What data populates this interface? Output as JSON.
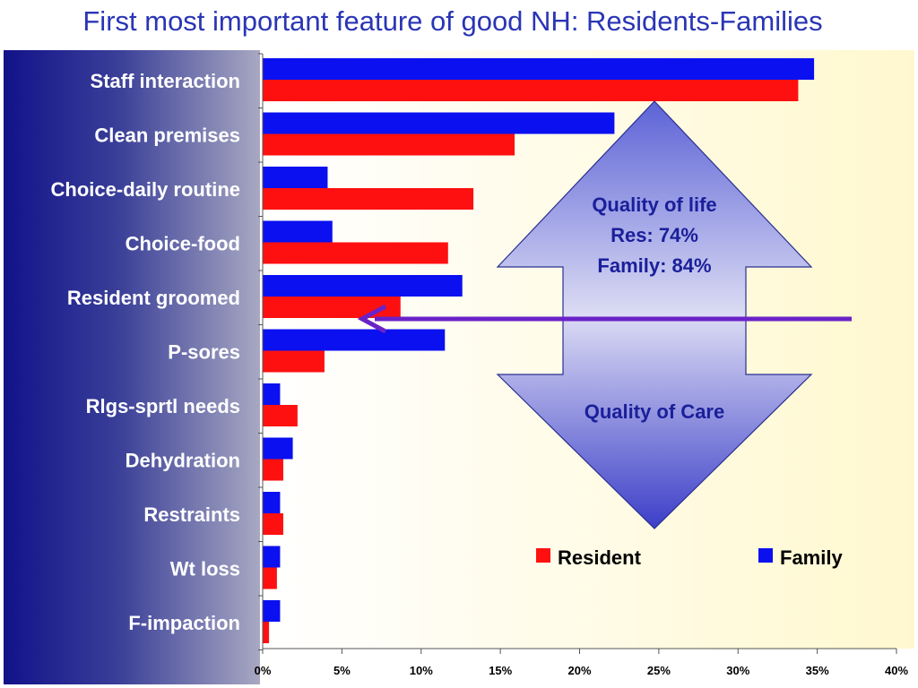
{
  "title": "First most important feature of good NH: Residents-Families",
  "colors": {
    "resident": "#ff1010",
    "family": "#0a10f0",
    "title": "#2a35b5",
    "arrow": "#6a22c8",
    "callout_text": "#1a1f9a"
  },
  "chart_data": {
    "type": "bar",
    "orientation": "horizontal",
    "categories": [
      "Staff interaction",
      "Clean premises",
      "Choice-daily routine",
      "Choice-food",
      "Resident groomed",
      "P-sores",
      "Rlgs-sprtl needs",
      "Dehydration",
      "Restraints",
      "Wt loss",
      "F-impaction"
    ],
    "series": [
      {
        "name": "Family",
        "color": "#0a10f0",
        "values": [
          34.8,
          22.2,
          4.1,
          4.4,
          12.6,
          11.5,
          1.1,
          1.9,
          1.1,
          1.1,
          1.1
        ]
      },
      {
        "name": "Resident",
        "color": "#ff1010",
        "values": [
          33.8,
          15.9,
          13.3,
          11.7,
          8.7,
          3.9,
          2.2,
          1.3,
          1.3,
          0.9,
          0.4
        ]
      }
    ],
    "xlim": [
      0,
      40
    ],
    "x_ticks": [
      "0%",
      "5%",
      "10%",
      "15%",
      "20%",
      "25%",
      "30%",
      "35%",
      "40%"
    ],
    "legend": [
      "Resident",
      "Family"
    ],
    "legend_position": "bottom-right"
  },
  "callout": {
    "top_lines": [
      "Quality of life",
      "Res: 74%",
      "Family: 84%"
    ],
    "bottom_text": "Quality of Care"
  }
}
